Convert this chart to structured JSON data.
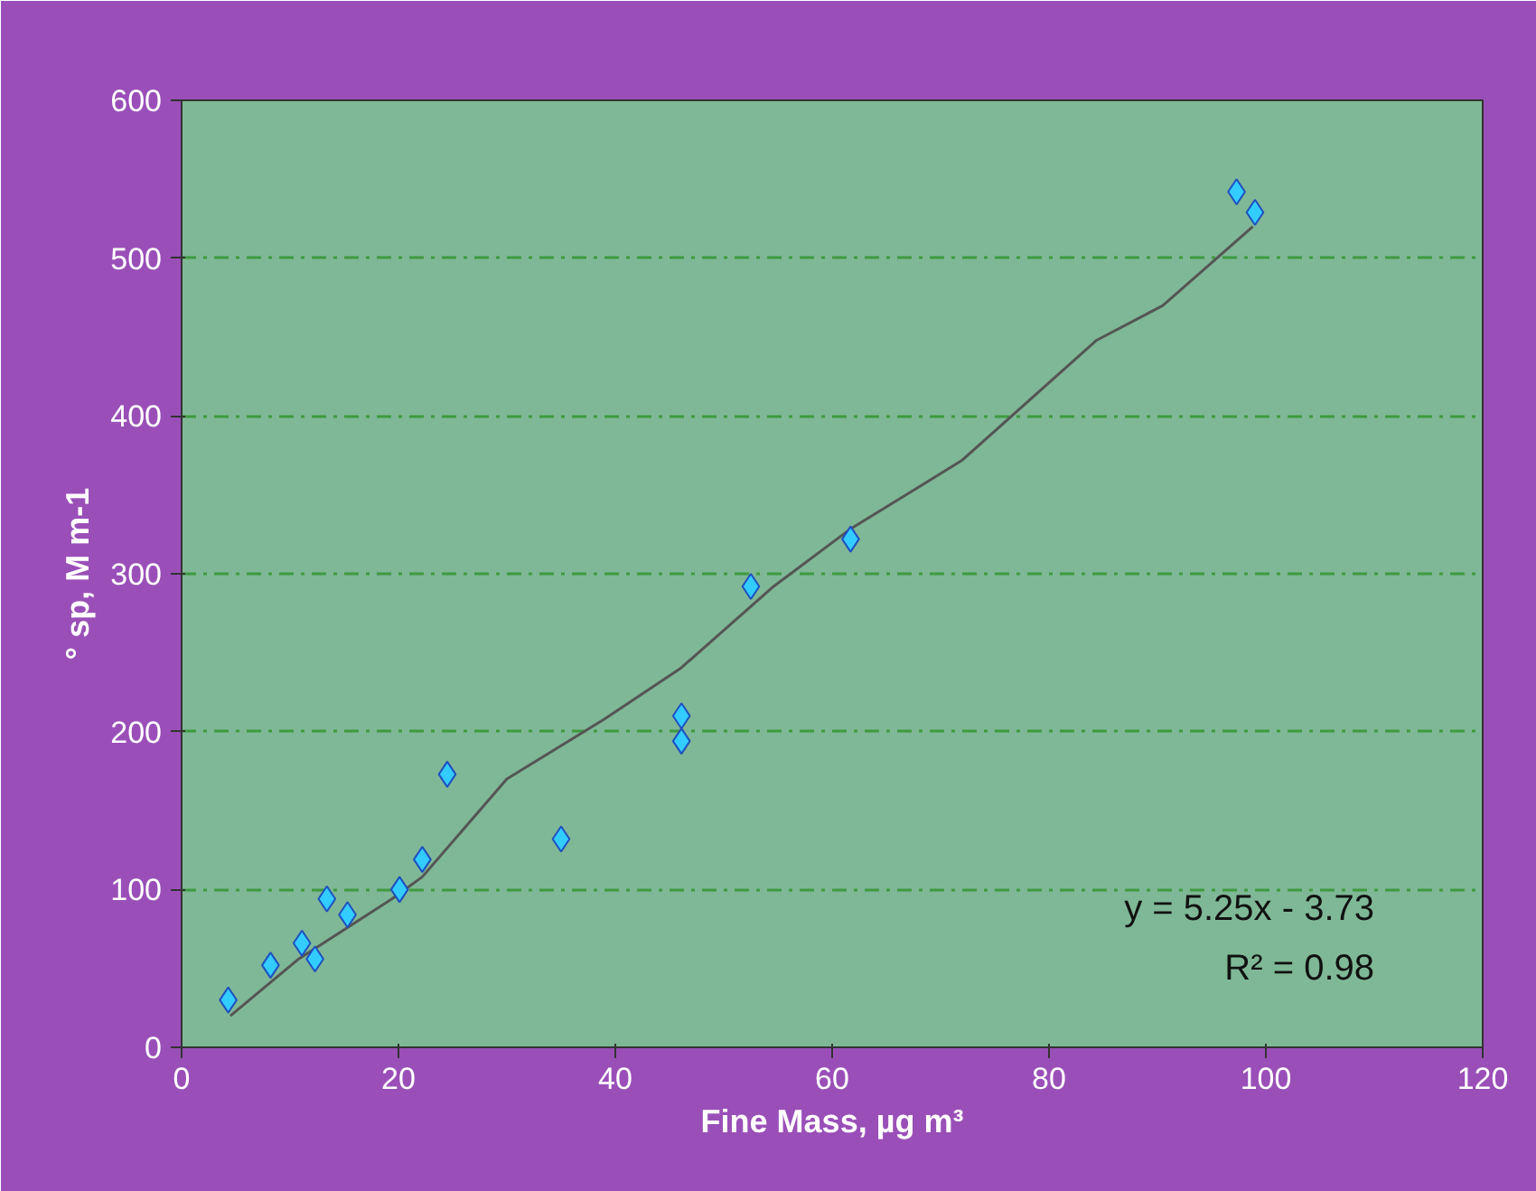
{
  "chart_data": {
    "type": "scatter",
    "xlabel": "Fine Mass, µg m³",
    "ylabel": "° sp, M m-1",
    "xlim": [
      0,
      120
    ],
    "xticks": [
      0,
      20,
      40,
      60,
      80,
      100,
      120
    ],
    "ylim": [
      0,
      600
    ],
    "yticks": [
      0,
      100,
      200,
      300,
      400,
      500,
      600
    ],
    "grid": "y",
    "series": [
      {
        "marker": "diamond",
        "color": "#33ccff",
        "x": [
          4.3,
          8.2,
          11.1,
          12.3,
          13.4,
          15.3,
          20.1,
          22.2,
          24.5,
          35,
          46.1,
          46.1,
          52.5,
          61.7,
          97.3,
          99
        ],
        "values": [
          30,
          52,
          66,
          56,
          94,
          84,
          100,
          119,
          173,
          132,
          210,
          194,
          292,
          322,
          542,
          529
        ]
      },
      {
        "type": "line",
        "color": "#555555",
        "x": [
          4.5,
          10.8,
          19.4,
          22.2,
          30,
          39,
          46,
          54.6,
          61.6,
          72,
          84.4,
          90.5,
          98.8
        ],
        "values": [
          20,
          56,
          94,
          108,
          170,
          208,
          240,
          292,
          328,
          372,
          448,
          470,
          520
        ]
      }
    ],
    "annotations": [
      "y = 5.25x - 3.73",
      "R² = 0.98"
    ]
  }
}
